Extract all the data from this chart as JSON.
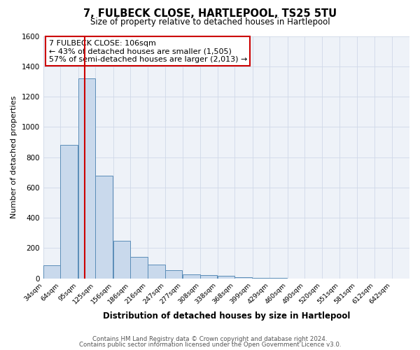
{
  "title": "7, FULBECK CLOSE, HARTLEPOOL, TS25 5TU",
  "subtitle": "Size of property relative to detached houses in Hartlepool",
  "xlabel": "Distribution of detached houses by size in Hartlepool",
  "ylabel": "Number of detached properties",
  "bar_labels": [
    "34sqm",
    "64sqm",
    "95sqm",
    "125sqm",
    "156sqm",
    "186sqm",
    "216sqm",
    "247sqm",
    "277sqm",
    "308sqm",
    "338sqm",
    "368sqm",
    "399sqm",
    "429sqm",
    "460sqm",
    "490sqm",
    "520sqm",
    "551sqm",
    "581sqm",
    "612sqm",
    "642sqm"
  ],
  "bar_values": [
    85,
    880,
    1320,
    680,
    250,
    140,
    90,
    55,
    25,
    20,
    15,
    10,
    5,
    2,
    0,
    0,
    0,
    0,
    0,
    0,
    0
  ],
  "bar_color": "#c9d9ec",
  "bar_edge_color": "#5b8db8",
  "vline_x": 106,
  "vline_color": "#cc0000",
  "ylim": [
    0,
    1600
  ],
  "yticks": [
    0,
    200,
    400,
    600,
    800,
    1000,
    1200,
    1400,
    1600
  ],
  "annotation_box_text": "7 FULBECK CLOSE: 106sqm\n← 43% of detached houses are smaller (1,505)\n57% of semi-detached houses are larger (2,013) →",
  "footer_line1": "Contains HM Land Registry data © Crown copyright and database right 2024.",
  "footer_line2": "Contains public sector information licensed under the Open Government Licence v3.0.",
  "background_color": "#ffffff",
  "grid_color": "#d0d8e8",
  "annotation_box_color": "#ffffff",
  "annotation_box_edge_color": "#cc0000",
  "tick_positions": [
    34,
    64,
    95,
    125,
    156,
    186,
    216,
    247,
    277,
    308,
    338,
    368,
    399,
    429,
    460,
    490,
    520,
    551,
    581,
    612,
    642
  ]
}
